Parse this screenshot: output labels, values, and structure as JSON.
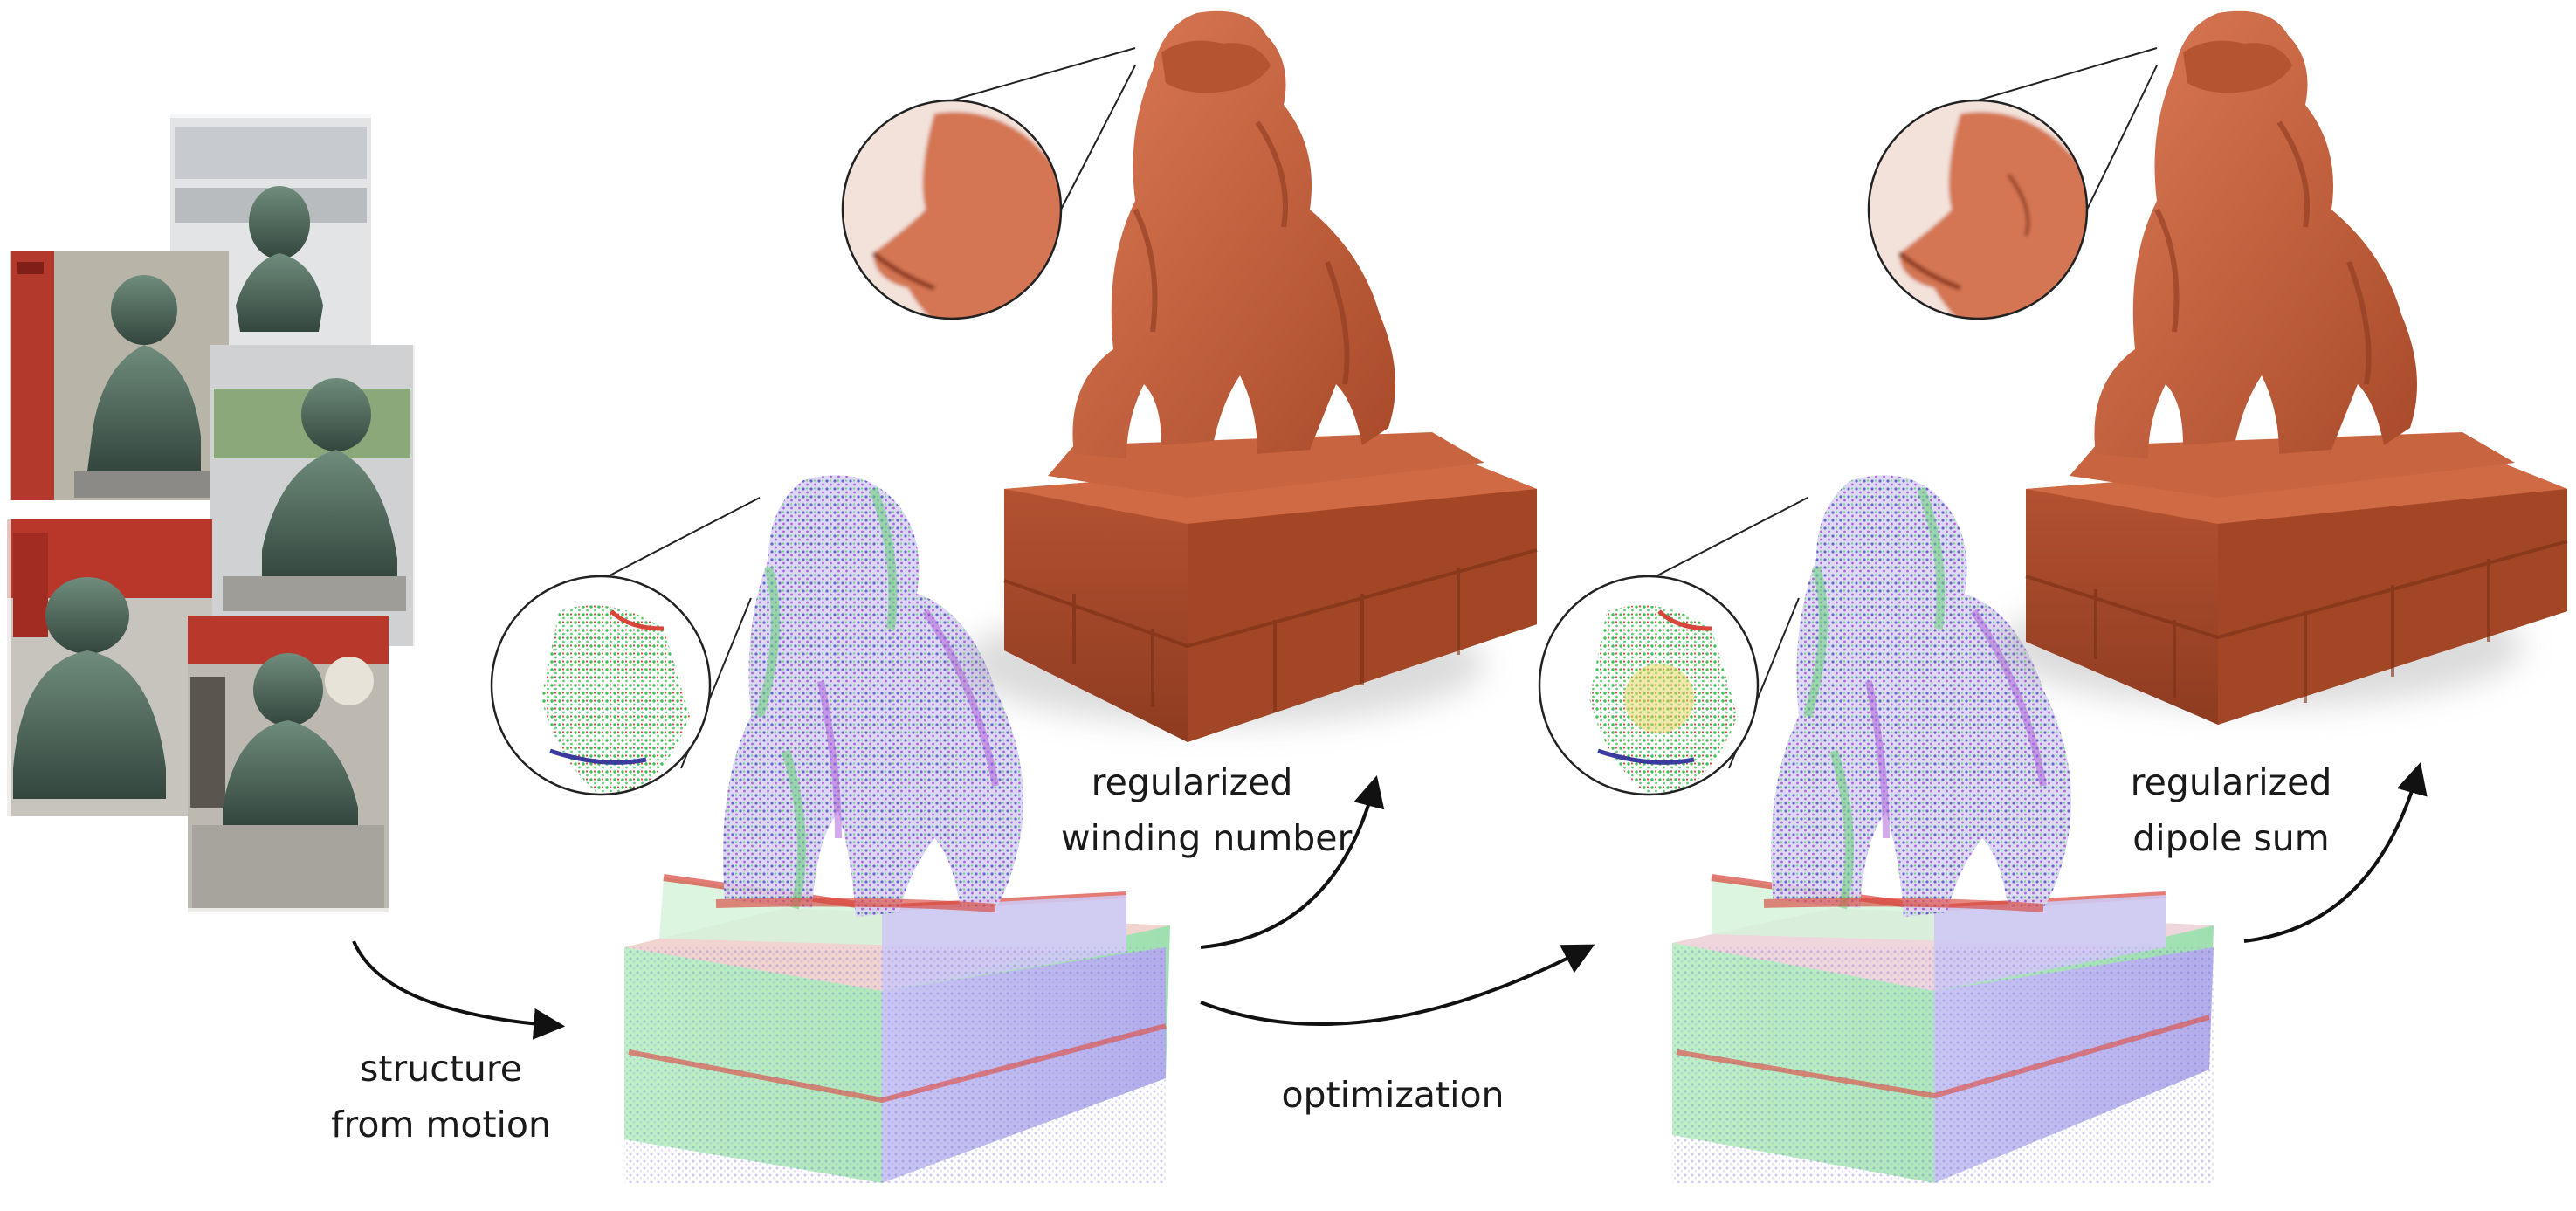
{
  "labels": {
    "structure_from_motion": [
      "structure",
      "from motion"
    ],
    "optimization": "optimization",
    "regularized_winding_number": [
      "regularized",
      "winding number"
    ],
    "regularized_dipole_sum": [
      "regularized",
      "dipole sum"
    ]
  },
  "colors": {
    "photo_bronze": "#4f6a5c",
    "photo_shrine_red": "#c0392b",
    "mesh_terracotta": "#c7613d",
    "mesh_shadow": "#8e3b20",
    "points_green": "#5fcf73",
    "points_blue": "#5a55c8",
    "points_red": "#d8453a",
    "points_purple": "#a552d9",
    "arrow": "#111111"
  },
  "icons": [
    "photo-collage",
    "point-cloud-statue",
    "mesh-statue",
    "zoom-inset",
    "curved-arrow"
  ]
}
